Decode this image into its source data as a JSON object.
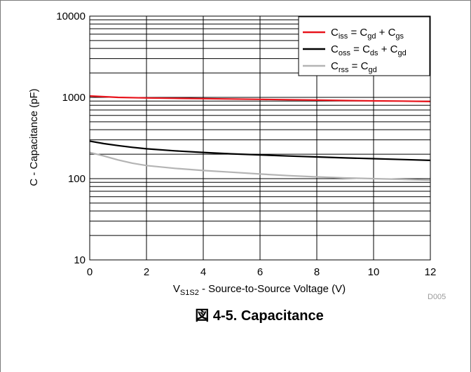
{
  "figure": {
    "caption": "図 4-5. Capacitance",
    "figure_id": "D005"
  },
  "chart_data": {
    "type": "line",
    "title": "",
    "xlabel": {
      "main": "V",
      "sub": "S1S2",
      "rest": " - Source-to-Source Voltage (V)"
    },
    "ylabel": "C - Capacitance (pF)",
    "xlim": [
      0,
      12
    ],
    "ylim": [
      10,
      10000
    ],
    "yscale": "log",
    "x_ticks": [
      0,
      2,
      4,
      6,
      8,
      10,
      12
    ],
    "x_tick_labels": [
      "0",
      "2",
      "4",
      "6",
      "8",
      "10",
      "12"
    ],
    "y_ticks": [
      10,
      100,
      1000,
      10000
    ],
    "y_tick_labels": [
      "10",
      "100",
      "1000",
      "10000"
    ],
    "grid": true,
    "legend_position": "top-right",
    "series": [
      {
        "key": "ciss",
        "color": "#e8141c",
        "legend": [
          {
            "t": "C",
            "s": false
          },
          {
            "t": "iss",
            "s": true
          },
          {
            "t": " = C",
            "s": false
          },
          {
            "t": "gd",
            "s": true
          },
          {
            "t": " + C",
            "s": false
          },
          {
            "t": "gs",
            "s": true
          }
        ],
        "x": [
          0,
          0.5,
          1,
          2,
          3,
          4,
          5,
          6,
          7,
          8,
          9,
          10,
          11,
          12
        ],
        "y": [
          1040,
          1020,
          1000,
          985,
          975,
          965,
          955,
          945,
          935,
          925,
          915,
          905,
          900,
          890
        ]
      },
      {
        "key": "coss",
        "color": "#000000",
        "legend": [
          {
            "t": "C",
            "s": false
          },
          {
            "t": "oss",
            "s": true
          },
          {
            "t": " = C",
            "s": false
          },
          {
            "t": "ds",
            "s": true
          },
          {
            "t": " + C",
            "s": false
          },
          {
            "t": "gd",
            "s": true
          }
        ],
        "x": [
          0,
          0.5,
          1,
          1.5,
          2,
          3,
          4,
          5,
          6,
          7,
          8,
          9,
          10,
          11,
          12
        ],
        "y": [
          290,
          270,
          255,
          243,
          233,
          220,
          210,
          202,
          196,
          190,
          185,
          180,
          176,
          172,
          168
        ]
      },
      {
        "key": "crss",
        "color": "#b4b4b4",
        "legend": [
          {
            "t": "C",
            "s": false
          },
          {
            "t": "rss",
            "s": true
          },
          {
            "t": " = C",
            "s": false
          },
          {
            "t": "gd",
            "s": true
          }
        ],
        "x": [
          0,
          0.5,
          1,
          1.5,
          2,
          3,
          4,
          5,
          6,
          7,
          8,
          9,
          10,
          11,
          12
        ],
        "y": [
          210,
          190,
          170,
          155,
          145,
          134,
          126,
          120,
          114,
          109,
          105,
          102,
          100,
          98,
          96
        ]
      }
    ]
  }
}
